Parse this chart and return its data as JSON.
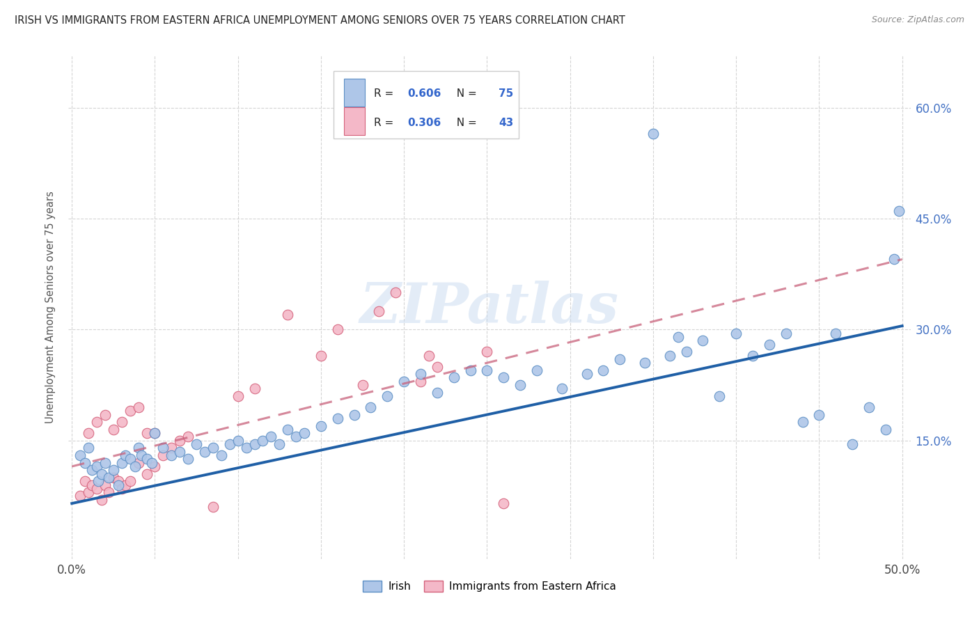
{
  "title": "IRISH VS IMMIGRANTS FROM EASTERN AFRICA UNEMPLOYMENT AMONG SENIORS OVER 75 YEARS CORRELATION CHART",
  "source": "Source: ZipAtlas.com",
  "ylabel": "Unemployment Among Seniors over 75 years",
  "xlim": [
    0.0,
    0.5
  ],
  "ylim": [
    -0.01,
    0.67
  ],
  "irish_color": "#aec6e8",
  "irish_edge_color": "#5b8ec4",
  "ea_color": "#f4b8c8",
  "ea_edge_color": "#d4607a",
  "irish_line_color": "#1f5fa6",
  "ea_line_color": "#c8607a",
  "irish_R": 0.606,
  "irish_N": 75,
  "ea_R": 0.306,
  "ea_N": 43,
  "watermark": "ZIPatlas",
  "legend_irish_label": "Irish",
  "legend_ea_label": "Immigrants from Eastern Africa",
  "background_color": "#ffffff",
  "grid_color": "#d0d0d0",
  "irish_line_x0": 0.0,
  "irish_line_y0": 0.065,
  "irish_line_x1": 0.5,
  "irish_line_y1": 0.305,
  "ea_line_x0": 0.0,
  "ea_line_y0": 0.115,
  "ea_line_x1": 0.5,
  "ea_line_y1": 0.395,
  "ytick_positions": [
    0.15,
    0.3,
    0.45,
    0.6
  ],
  "ytick_labels": [
    "15.0%",
    "30.0%",
    "45.0%",
    "60.0%"
  ],
  "irish_x": [
    0.005,
    0.008,
    0.01,
    0.012,
    0.015,
    0.016,
    0.018,
    0.02,
    0.022,
    0.025,
    0.028,
    0.03,
    0.032,
    0.035,
    0.038,
    0.04,
    0.042,
    0.045,
    0.048,
    0.05,
    0.055,
    0.06,
    0.065,
    0.07,
    0.075,
    0.08,
    0.085,
    0.09,
    0.095,
    0.1,
    0.105,
    0.11,
    0.115,
    0.12,
    0.125,
    0.13,
    0.135,
    0.14,
    0.15,
    0.16,
    0.17,
    0.18,
    0.19,
    0.2,
    0.21,
    0.22,
    0.23,
    0.24,
    0.25,
    0.26,
    0.27,
    0.28,
    0.295,
    0.31,
    0.32,
    0.33,
    0.345,
    0.36,
    0.37,
    0.38,
    0.39,
    0.4,
    0.41,
    0.42,
    0.43,
    0.44,
    0.45,
    0.46,
    0.47,
    0.48,
    0.49,
    0.495,
    0.498,
    0.35,
    0.365
  ],
  "irish_y": [
    0.13,
    0.12,
    0.14,
    0.11,
    0.115,
    0.095,
    0.105,
    0.12,
    0.1,
    0.11,
    0.09,
    0.12,
    0.13,
    0.125,
    0.115,
    0.14,
    0.13,
    0.125,
    0.12,
    0.16,
    0.14,
    0.13,
    0.135,
    0.125,
    0.145,
    0.135,
    0.14,
    0.13,
    0.145,
    0.15,
    0.14,
    0.145,
    0.15,
    0.155,
    0.145,
    0.165,
    0.155,
    0.16,
    0.17,
    0.18,
    0.185,
    0.195,
    0.21,
    0.23,
    0.24,
    0.215,
    0.235,
    0.245,
    0.245,
    0.235,
    0.225,
    0.245,
    0.22,
    0.24,
    0.245,
    0.26,
    0.255,
    0.265,
    0.27,
    0.285,
    0.21,
    0.295,
    0.265,
    0.28,
    0.295,
    0.175,
    0.185,
    0.295,
    0.145,
    0.195,
    0.165,
    0.395,
    0.46,
    0.565,
    0.29
  ],
  "ea_x": [
    0.005,
    0.008,
    0.01,
    0.012,
    0.015,
    0.018,
    0.02,
    0.022,
    0.025,
    0.028,
    0.03,
    0.032,
    0.035,
    0.04,
    0.045,
    0.05,
    0.055,
    0.06,
    0.065,
    0.07,
    0.01,
    0.015,
    0.02,
    0.025,
    0.03,
    0.035,
    0.04,
    0.045,
    0.05,
    0.085,
    0.1,
    0.11,
    0.13,
    0.15,
    0.16,
    0.175,
    0.185,
    0.195,
    0.21,
    0.215,
    0.22,
    0.25,
    0.26
  ],
  "ea_y": [
    0.075,
    0.095,
    0.08,
    0.09,
    0.085,
    0.07,
    0.09,
    0.08,
    0.1,
    0.095,
    0.085,
    0.09,
    0.095,
    0.12,
    0.105,
    0.115,
    0.13,
    0.14,
    0.15,
    0.155,
    0.16,
    0.175,
    0.185,
    0.165,
    0.175,
    0.19,
    0.195,
    0.16,
    0.16,
    0.06,
    0.21,
    0.22,
    0.32,
    0.265,
    0.3,
    0.225,
    0.325,
    0.35,
    0.23,
    0.265,
    0.25,
    0.27,
    0.065
  ]
}
